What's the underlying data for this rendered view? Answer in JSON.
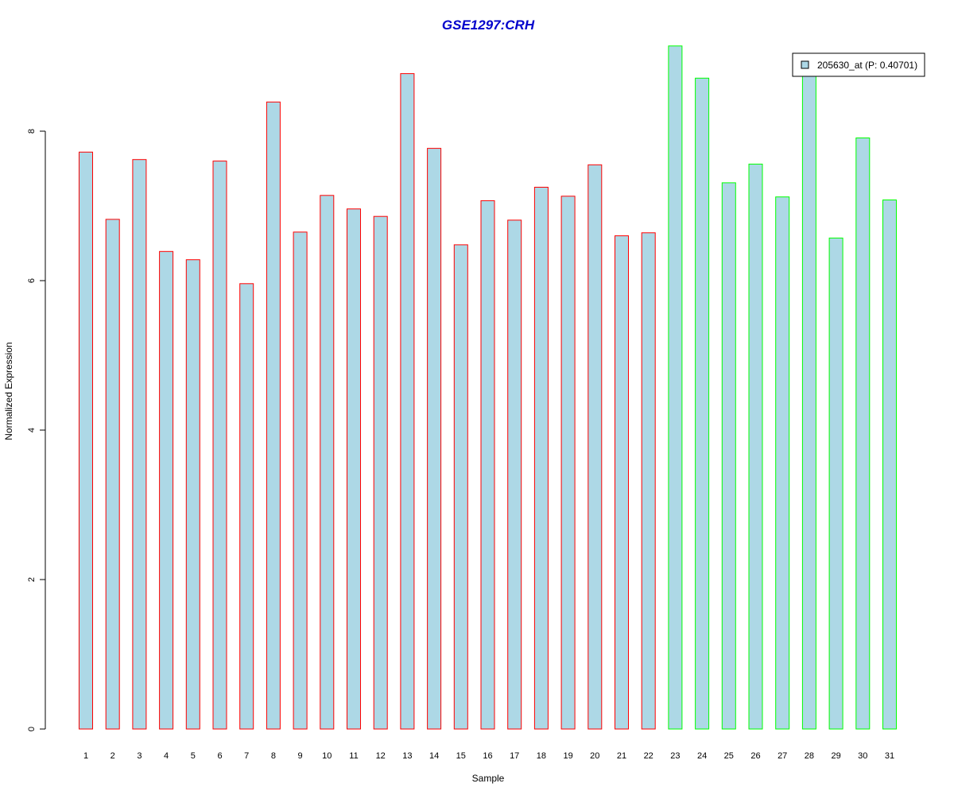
{
  "chart_data": {
    "type": "bar",
    "title": "GSE1297:CRH",
    "xlabel": "Sample",
    "ylabel": "Normalized Expression",
    "ylim": [
      0,
      9.2
    ],
    "yticks": [
      "0",
      "2",
      "4",
      "6",
      "8"
    ],
    "categories": [
      "1",
      "2",
      "3",
      "4",
      "5",
      "6",
      "7",
      "8",
      "9",
      "10",
      "11",
      "12",
      "13",
      "14",
      "15",
      "16",
      "17",
      "18",
      "19",
      "20",
      "21",
      "22",
      "23",
      "24",
      "25",
      "26",
      "27",
      "28",
      "29",
      "30",
      "31"
    ],
    "series": [
      {
        "name": "205630_at (P: 0.40701)",
        "values": [
          7.72,
          6.82,
          7.62,
          6.39,
          6.28,
          7.6,
          5.96,
          8.39,
          6.65,
          7.14,
          6.96,
          6.86,
          8.77,
          7.77,
          6.48,
          7.07,
          6.81,
          7.25,
          7.13,
          7.55,
          6.6,
          6.64,
          9.14,
          8.71,
          7.31,
          7.56,
          7.12,
          8.77,
          6.57,
          7.91,
          7.08
        ]
      }
    ],
    "groups": [
      1,
      1,
      1,
      1,
      1,
      1,
      1,
      1,
      1,
      1,
      1,
      1,
      1,
      1,
      1,
      1,
      1,
      1,
      1,
      1,
      1,
      1,
      2,
      2,
      2,
      2,
      2,
      2,
      2,
      2,
      2
    ],
    "legend_position": "top-right",
    "grid": false
  },
  "colors": {
    "title": "#0000cc",
    "bar_fill": "#add8e6",
    "group1_border": "#ff0000",
    "group2_border": "#00ff00",
    "axis": "#000000"
  }
}
